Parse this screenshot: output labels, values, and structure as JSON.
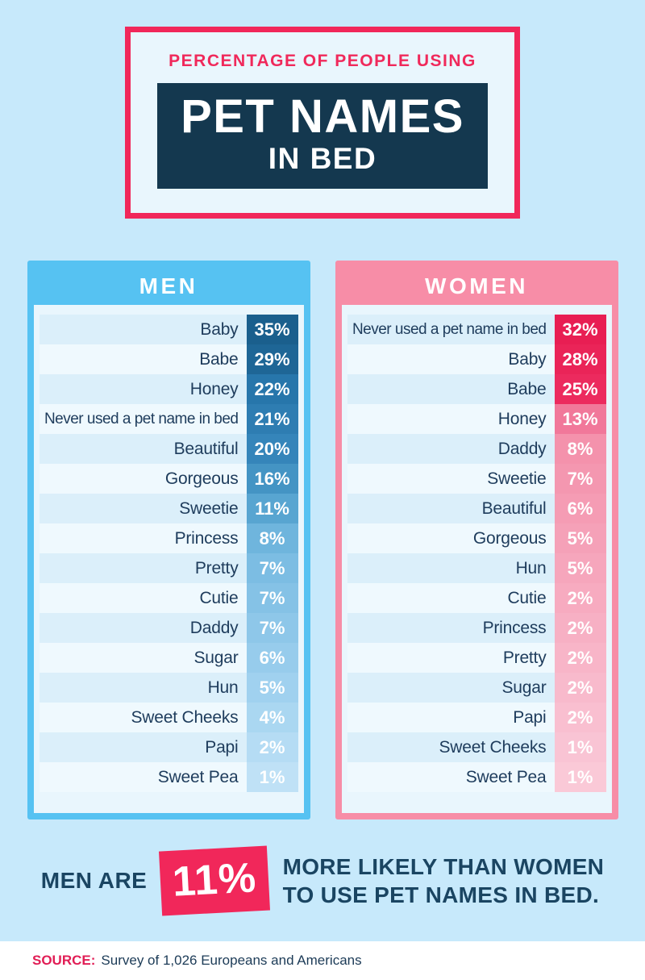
{
  "title": {
    "eyebrow": "PERCENTAGE OF PEOPLE USING",
    "line1": "PET NAMES",
    "line2": "IN BED",
    "eyebrow_color": "#f0295b",
    "border_color": "#f1275a",
    "banner_bg": "#14384f"
  },
  "chart_data": [
    {
      "type": "bar",
      "title": "MEN",
      "unit": "%",
      "xlim": [
        0,
        35
      ],
      "accent": "#56c2f2",
      "categories": [
        "Baby",
        "Babe",
        "Honey",
        "Never used a pet name in bed",
        "Beautiful",
        "Gorgeous",
        "Sweetie",
        "Princess",
        "Pretty",
        "Cutie",
        "Daddy",
        "Sugar",
        "Hun",
        "Sweet Cheeks",
        "Papi",
        "Sweet Pea"
      ],
      "values": [
        35,
        29,
        22,
        21,
        20,
        16,
        11,
        8,
        7,
        7,
        7,
        6,
        5,
        4,
        2,
        1
      ],
      "bar_colors": [
        "#1a5f8d",
        "#1e6696",
        "#2776ab",
        "#2e7db2",
        "#3585ba",
        "#4494c4",
        "#58a5d1",
        "#6fb5dd",
        "#7cbde3",
        "#85c2e6",
        "#8ec7e9",
        "#97ccec",
        "#a0d1ef",
        "#aad7f1",
        "#b5dcf4",
        "#bfe1f6"
      ]
    },
    {
      "type": "bar",
      "title": "WOMEN",
      "unit": "%",
      "xlim": [
        0,
        32
      ],
      "accent": "#f78da7",
      "categories": [
        "Never used a pet name in bed",
        "Baby",
        "Babe",
        "Honey",
        "Daddy",
        "Sweetie",
        "Beautiful",
        "Gorgeous",
        "Hun",
        "Cutie",
        "Princess",
        "Pretty",
        "Sugar",
        "Papi",
        "Sweet Cheeks",
        "Sweet Pea"
      ],
      "values": [
        32,
        28,
        25,
        13,
        8,
        7,
        6,
        5,
        5,
        2,
        2,
        2,
        2,
        2,
        1,
        1
      ],
      "bar_colors": [
        "#e81e53",
        "#ea2458",
        "#ec2a5e",
        "#f1789a",
        "#f492ac",
        "#f497b0",
        "#f59cb4",
        "#f5a1b8",
        "#f6a6bc",
        "#f7abc0",
        "#f7b0c4",
        "#f8b5c8",
        "#f8bacc",
        "#f9bfd0",
        "#f9c4d4",
        "#fac9d7"
      ]
    }
  ],
  "callout": {
    "prefix": "MEN ARE",
    "stat": "11%",
    "suffix_line1": "MORE LIKELY THAN WOMEN",
    "suffix_line2": "TO USE PET NAMES IN BED.",
    "stat_bg": "#f1275a",
    "text_color": "#1a4562"
  },
  "footer": {
    "label": "SOURCE:",
    "text": "Survey of 1,026 Europeans and Americans",
    "label_color": "#e11d55"
  }
}
